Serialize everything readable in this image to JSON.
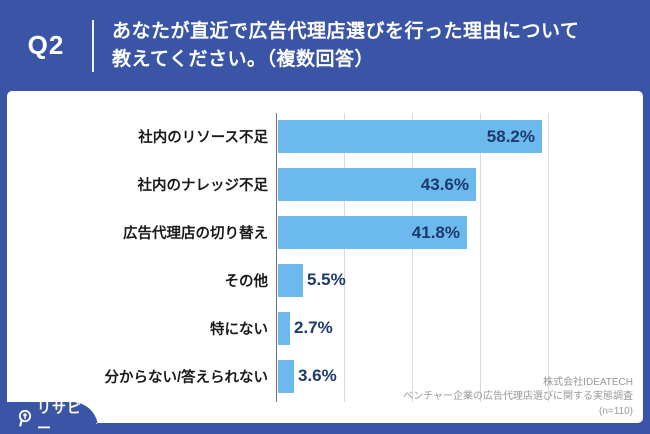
{
  "header": {
    "question_no": "Q2",
    "title_line1": "あなたが直近で広告代理店選びを行った理由について",
    "title_line2": "教えてください。（複数回答）"
  },
  "chart_data": {
    "type": "bar",
    "orientation": "horizontal",
    "title": "あなたが直近で広告代理店選びを行った理由について教えてください。（複数回答）",
    "categories": [
      "社内のリソース不足",
      "社内のナレッジ不足",
      "広告代理店の切り替え",
      "その他",
      "特にない",
      "分からない/答えられない"
    ],
    "values": [
      58.2,
      43.6,
      41.8,
      5.5,
      2.7,
      3.6
    ],
    "value_labels": [
      "58.2%",
      "43.6%",
      "41.8%",
      "5.5%",
      "2.7%",
      "3.6%"
    ],
    "xlim": [
      0,
      80
    ],
    "gridline_interval_percent": 15,
    "grid": true,
    "legend": "none",
    "bar_color": "#6CB9EE",
    "value_label_color": "#1D3A6B"
  },
  "attribution": {
    "company": "株式会社IDEATECH",
    "survey": "ベンチャー企業の広告代理店選びに関する実態調査",
    "sample": "(n=110)"
  },
  "logo": {
    "text": "リサピー",
    "suffix": "."
  },
  "colors": {
    "frame_blue": "#3A55A5",
    "bar_blue": "#6CB9EE",
    "label_navy": "#1D3A6B",
    "grid_gray": "#D9D9D9",
    "axis_gray": "#737373",
    "panel_white": "#FFFFFF",
    "attribution_gray": "#999999"
  }
}
